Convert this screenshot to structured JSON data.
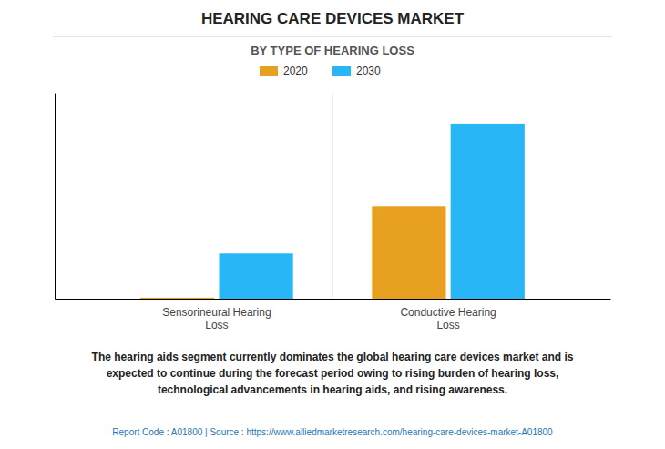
{
  "chart_data": {
    "type": "bar",
    "title": "HEARING CARE DEVICES MARKET",
    "subtitle": "BY TYPE OF HEARING LOSS",
    "categories": [
      "Sensorineural Hearing\nLoss",
      "Conductive Hearing\nLoss"
    ],
    "series": [
      {
        "name": "2020",
        "color": "#e8a020",
        "values": [
          0.05,
          4.5
        ]
      },
      {
        "name": "2030",
        "color": "#29b6f6",
        "values": [
          2.2,
          8.5
        ]
      }
    ],
    "ylim": [
      0,
      10
    ],
    "yticks": [],
    "grid": false,
    "legend": "top",
    "tick_labels": "x",
    "annotations": [
      "The hearing aids segment currently dominates the global hearing care devices market and is\nexpected to continue during the forecast period owing to rising burden of hearing loss,\ntechnological advancements in hearing aids, and rising awareness.",
      "Report Code : A01800  |  Source : https://www.alliedmarketresearch.com/hearing-care-devices-market-A01800"
    ]
  }
}
